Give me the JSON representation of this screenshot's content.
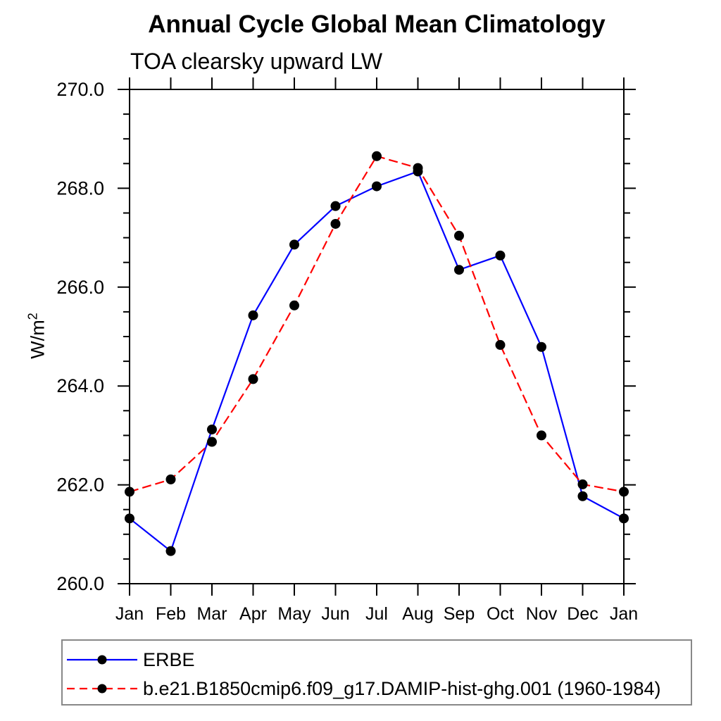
{
  "header": {
    "title": "Annual Cycle Global Mean Climatology",
    "subtitle": "TOA clearsky upward LW",
    "ylabel_base": "W/m",
    "ylabel_sup": "2"
  },
  "chart_data": {
    "type": "line",
    "title": "Annual Cycle Global Mean Climatology",
    "subtitle": "TOA clearsky upward LW",
    "xlabel": "",
    "ylabel": "W/m²",
    "categories": [
      "Jan",
      "Feb",
      "Mar",
      "Apr",
      "May",
      "Jun",
      "Jul",
      "Aug",
      "Sep",
      "Oct",
      "Nov",
      "Dec",
      "Jan"
    ],
    "ylim": [
      260.0,
      270.0
    ],
    "ytick_values": [
      260,
      262,
      264,
      266,
      268,
      270
    ],
    "ytick_labels": [
      "260.0",
      "262.0",
      "264.0",
      "266.0",
      "268.0",
      "270.0"
    ],
    "ytick_minor_step": 0.5,
    "grid": false,
    "legend_position": "bottom-left",
    "series": [
      {
        "name": "ERBE",
        "color": "#0000ff",
        "line_style": "solid",
        "marker": "filled-circle",
        "marker_color": "#000000",
        "values": [
          261.32,
          260.66,
          263.12,
          265.43,
          266.86,
          267.64,
          268.04,
          268.34,
          266.35,
          266.64,
          264.79,
          261.77,
          261.32
        ]
      },
      {
        "name": "b.e21.B1850cmip6.f09_g17.DAMIP-hist-ghg.001 (1960-1984)",
        "color": "#ff0000",
        "line_style": "dashed",
        "marker": "filled-circle",
        "marker_color": "#000000",
        "values": [
          261.86,
          262.11,
          262.87,
          264.14,
          265.63,
          267.28,
          268.65,
          268.41,
          267.04,
          264.83,
          263.0,
          262.01,
          261.86
        ]
      }
    ]
  }
}
